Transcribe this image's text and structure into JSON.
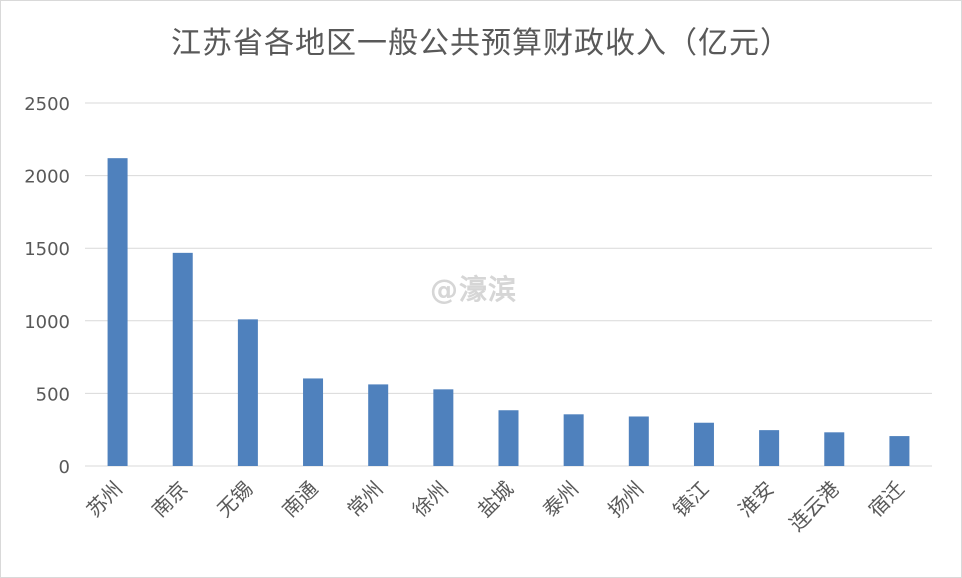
{
  "chart_data": {
    "type": "bar",
    "title": "江苏省各地区一般公共预算财政收入（亿元）",
    "categories": [
      "苏州",
      "南京",
      "无锡",
      "南通",
      "常州",
      "徐州",
      "盐城",
      "泰州",
      "扬州",
      "镇江",
      "淮安",
      "连云港",
      "宿迁"
    ],
    "values": [
      2120,
      1468,
      1010,
      603,
      562,
      528,
      384,
      356,
      341,
      298,
      247,
      232,
      206
    ],
    "ylim": [
      0,
      2500
    ],
    "yticks": [
      0,
      500,
      1000,
      1500,
      2000,
      2500
    ],
    "grid": true,
    "legend": "none",
    "bar_color": "#4f81bd"
  },
  "watermark": "@濠滨"
}
